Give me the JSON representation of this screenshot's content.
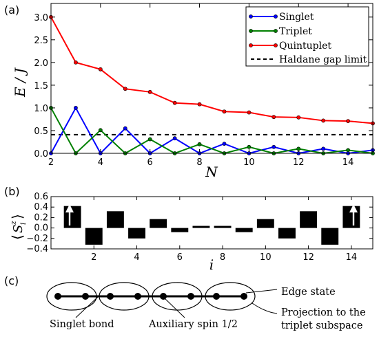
{
  "panel_labels": {
    "a": "(a)",
    "b": "(b)",
    "c": "(c)"
  },
  "colors": {
    "singlet": "#0000ff",
    "triplet": "#008000",
    "quintuplet": "#ff0000",
    "haldane": "#000000",
    "bars": "#000000"
  },
  "chart_data": [
    {
      "type": "line",
      "ylabel": "E / J",
      "xlabel": "N",
      "xlim": [
        2,
        15
      ],
      "ylim": [
        0,
        3.3
      ],
      "xticks": [
        "2",
        "4",
        "6",
        "8",
        "10",
        "12",
        "14"
      ],
      "yticks": [
        "0.0",
        "0.5",
        "1.0",
        "1.5",
        "2.0",
        "2.5",
        "3.0"
      ],
      "legend_position": "top-right",
      "series": [
        {
          "name": "Singlet",
          "color": "#0000ff",
          "x": [
            2,
            3,
            4,
            5,
            6,
            7,
            8,
            9,
            10,
            11,
            12,
            13,
            14,
            15
          ],
          "y": [
            0,
            1.0,
            0,
            0.55,
            0,
            0.33,
            0,
            0.21,
            0,
            0.14,
            0,
            0.1,
            0,
            0.07
          ]
        },
        {
          "name": "Triplet",
          "color": "#008000",
          "x": [
            2,
            3,
            4,
            5,
            6,
            7,
            8,
            9,
            10,
            11,
            12,
            13,
            14,
            15
          ],
          "y": [
            1.0,
            0,
            0.51,
            0,
            0.31,
            0,
            0.2,
            0,
            0.14,
            0,
            0.1,
            0,
            0.07,
            0
          ]
        },
        {
          "name": "Quintuplet",
          "color": "#ff0000",
          "x": [
            2,
            3,
            4,
            5,
            6,
            7,
            8,
            9,
            10,
            11,
            12,
            13,
            14,
            15
          ],
          "y": [
            3.0,
            2.0,
            1.85,
            1.42,
            1.35,
            1.11,
            1.08,
            0.92,
            0.9,
            0.8,
            0.79,
            0.72,
            0.71,
            0.66
          ]
        }
      ],
      "reference_line": {
        "name": "Haldane gap limit",
        "y": 0.41,
        "style": "dashed"
      }
    },
    {
      "type": "bar",
      "ylabel": "⟨S_i^z⟩",
      "xlabel": "i",
      "xlim": [
        0,
        15
      ],
      "ylim": [
        -0.4,
        0.6
      ],
      "xticks": [
        "2",
        "4",
        "6",
        "8",
        "10",
        "12",
        "14"
      ],
      "yticks": [
        "−0.4",
        "−0.2",
        "0.0",
        "0.2",
        "0.4",
        "0.6"
      ],
      "categories": [
        1,
        2,
        3,
        4,
        5,
        6,
        7,
        8,
        9,
        10,
        11,
        12,
        13,
        14
      ],
      "values": [
        0.42,
        -0.32,
        0.32,
        -0.2,
        0.17,
        -0.08,
        0.04,
        0.04,
        -0.08,
        0.17,
        -0.2,
        0.32,
        -0.32,
        0.42
      ]
    }
  ],
  "diagram": {
    "labels": {
      "edge_state": "Edge state",
      "singlet_bond": "Singlet bond",
      "auxiliary_spin": "Auxiliary spin 1/2",
      "projection_line1": "Projection to the",
      "projection_line2": "triplet subspace"
    }
  }
}
